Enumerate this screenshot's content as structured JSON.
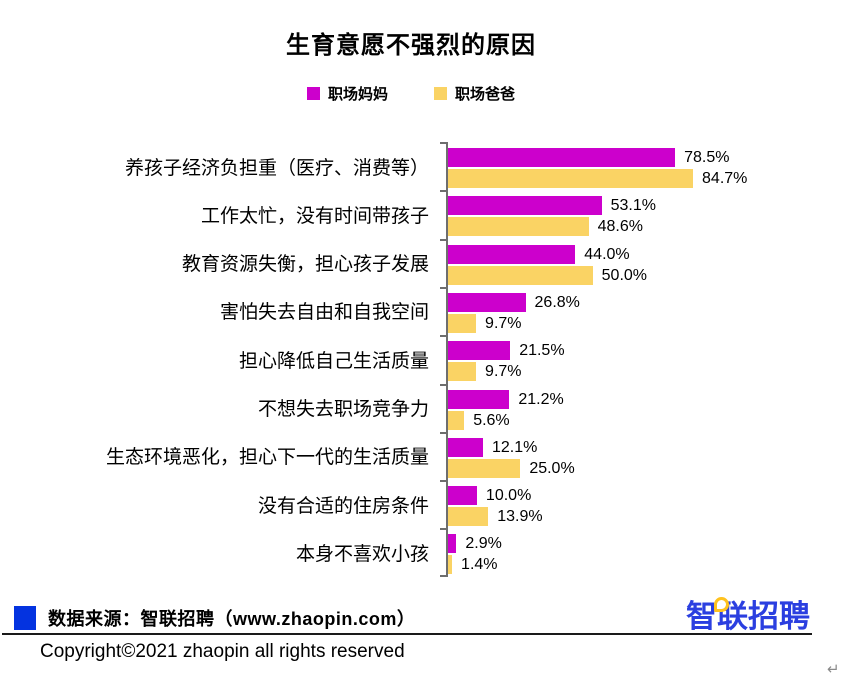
{
  "chart_data": {
    "type": "bar",
    "orientation": "horizontal",
    "title": "生育意愿不强烈的原因",
    "categories": [
      "养孩子经济负担重（医疗、消费等）",
      "工作太忙，没有时间带孩子",
      "教育资源失衡，担心孩子发展",
      "害怕失去自由和自我空间",
      "担心降低自己生活质量",
      "不想失去职场竞争力",
      "生态环境恶化，担心下一代的生活质量",
      "没有合适的住房条件",
      "本身不喜欢小孩"
    ],
    "series": [
      {
        "name": "职场妈妈",
        "color": "#CC00CC",
        "values": [
          78.5,
          53.1,
          44.0,
          26.8,
          21.5,
          21.2,
          12.1,
          10.0,
          2.9
        ]
      },
      {
        "name": "职场爸爸",
        "color": "#FAD364",
        "values": [
          84.7,
          48.6,
          50.0,
          9.7,
          9.7,
          5.6,
          25.0,
          13.9,
          1.4
        ]
      }
    ],
    "value_suffix": "%",
    "xlim": [
      0,
      100
    ],
    "grid": "off",
    "legend_position": "top",
    "data_labels": "outside-end"
  },
  "footer": {
    "source_text": "数据来源：智联招聘（www.zhaopin.com）",
    "source_square_color": "#0433E0",
    "copyright": "Copyright©2021 zhaopin all rights reserved"
  },
  "logo": {
    "char_first": "智",
    "chars_rest": "联招聘",
    "text_color": "#2B3FE0",
    "accent_color": "#FFC21E"
  },
  "editor": {
    "return_mark": "↵"
  }
}
